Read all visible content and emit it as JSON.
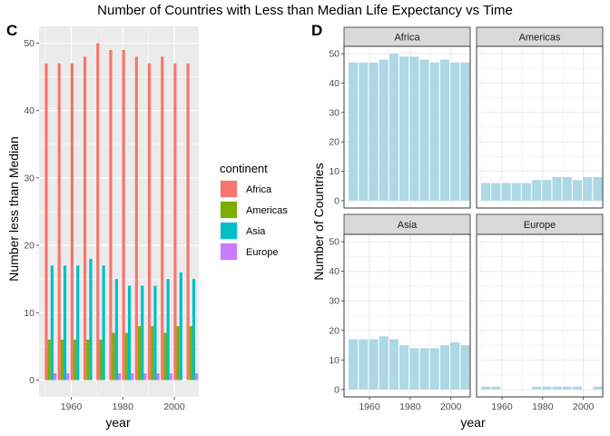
{
  "figure": {
    "title": "Number of Countries with Less than Median Life Expectancy vs Time"
  },
  "colors": {
    "Africa": "#F8766D",
    "Americas": "#7CAE00",
    "Asia": "#00BFC4",
    "Europe": "#C77CFF",
    "facet_fill": "#ADD8E6",
    "panel_grey": "#EBEBEB",
    "panel_white": "#FFFFFF",
    "strip": "#D9D9D9"
  },
  "chart_data": [
    {
      "type": "bar",
      "panel_tag": "C",
      "xlabel": "year",
      "ylabel": "Number less than Median",
      "xlim": [
        1947.5,
        2009.5
      ],
      "ylim": [
        -2.5,
        52.5
      ],
      "x_ticks": [
        1960,
        1980,
        2000
      ],
      "y_ticks": [
        0,
        10,
        20,
        30,
        40,
        50
      ],
      "legend": {
        "title": "continent",
        "position": "right"
      },
      "x": [
        1952,
        1957,
        1962,
        1967,
        1972,
        1977,
        1982,
        1987,
        1992,
        1997,
        2002,
        2007
      ],
      "series": [
        {
          "name": "Africa",
          "values": [
            47,
            47,
            47,
            48,
            50,
            49,
            49,
            48,
            47,
            48,
            47,
            47
          ]
        },
        {
          "name": "Americas",
          "values": [
            6,
            6,
            6,
            6,
            6,
            7,
            7,
            8,
            8,
            7,
            8,
            8
          ]
        },
        {
          "name": "Asia",
          "values": [
            17,
            17,
            17,
            18,
            17,
            15,
            14,
            14,
            14,
            15,
            16,
            15
          ]
        },
        {
          "name": "Europe",
          "values": [
            1,
            1,
            0,
            0,
            0,
            1,
            1,
            1,
            1,
            1,
            0,
            1
          ]
        }
      ],
      "grid": true
    },
    {
      "type": "bar",
      "panel_tag": "D",
      "facet": true,
      "xlabel": "year",
      "ylabel": "Number of Countries",
      "xlim": [
        1947.5,
        2009.5
      ],
      "ylim": [
        -2.5,
        52.5
      ],
      "x_ticks": [
        1960,
        1980,
        2000
      ],
      "y_ticks": [
        0,
        10,
        20,
        30,
        40,
        50
      ],
      "x": [
        1952,
        1957,
        1962,
        1967,
        1972,
        1977,
        1982,
        1987,
        1992,
        1997,
        2002,
        2007
      ],
      "facets": [
        {
          "name": "Africa",
          "values": [
            47,
            47,
            47,
            48,
            50,
            49,
            49,
            48,
            47,
            48,
            47,
            47
          ]
        },
        {
          "name": "Americas",
          "values": [
            6,
            6,
            6,
            6,
            6,
            7,
            7,
            8,
            8,
            7,
            8,
            8
          ]
        },
        {
          "name": "Asia",
          "values": [
            17,
            17,
            17,
            18,
            17,
            15,
            14,
            14,
            14,
            15,
            16,
            15
          ]
        },
        {
          "name": "Europe",
          "values": [
            1,
            1,
            0,
            0,
            0,
            1,
            1,
            1,
            1,
            1,
            0,
            1
          ]
        }
      ],
      "grid": true
    }
  ]
}
